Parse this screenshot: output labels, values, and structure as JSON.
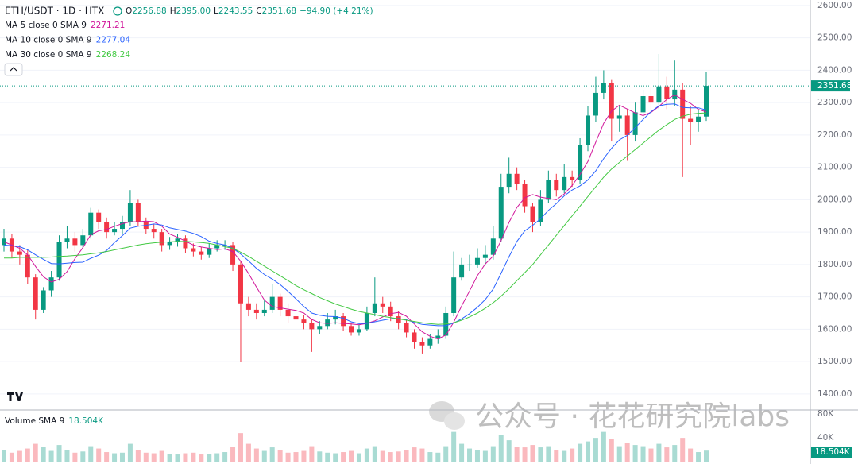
{
  "header": {
    "symbol": "ETH/USDT · 1D · HTX",
    "ohlc": [
      {
        "label": "O",
        "value": "2256.88"
      },
      {
        "label": "H",
        "value": "2395.00"
      },
      {
        "label": "L",
        "value": "2243.55"
      },
      {
        "label": "C",
        "value": "2351.68"
      }
    ],
    "change": "+94.90 (+4.21%)"
  },
  "watermark": "公众号 · 花花研究院labs",
  "chart_data": {
    "type": "candlestick",
    "up_color": "#089981",
    "down_color": "#f23645",
    "open": [
      1860,
      1880,
      1840,
      1830,
      1760,
      1660,
      1720,
      1760,
      1870,
      1880,
      1860,
      1890,
      1960,
      1930,
      1900,
      1910,
      1930,
      1990,
      1930,
      1910,
      1900,
      1860,
      1870,
      1880,
      1850,
      1840,
      1830,
      1850,
      1860,
      1860,
      1800,
      1680,
      1660,
      1650,
      1660,
      1700,
      1660,
      1640,
      1630,
      1620,
      1600,
      1610,
      1630,
      1640,
      1610,
      1590,
      1600,
      1650,
      1680,
      1670,
      1640,
      1620,
      1590,
      1560,
      1550,
      1570,
      1580,
      1650,
      1760,
      1800,
      1800,
      1820,
      1830,
      1880,
      2040,
      2080,
      2050,
      1980,
      1930,
      2000,
      2060,
      2030,
      2070,
      2060,
      2170,
      2260,
      2330,
      2360,
      2250,
      2260,
      2200,
      2270,
      2320,
      2300,
      2350,
      2310,
      2340,
      2250,
      2240,
      2256.88
    ],
    "high": [
      1910,
      1895,
      1860,
      1845,
      1770,
      1730,
      1780,
      1890,
      1920,
      1900,
      1910,
      1975,
      1970,
      1945,
      1930,
      1950,
      2030,
      2000,
      1945,
      1925,
      1910,
      1885,
      1895,
      1890,
      1865,
      1855,
      1865,
      1875,
      1875,
      1870,
      1810,
      1700,
      1680,
      1690,
      1740,
      1710,
      1680,
      1660,
      1645,
      1630,
      1625,
      1650,
      1660,
      1650,
      1620,
      1615,
      1670,
      1760,
      1700,
      1685,
      1655,
      1630,
      1600,
      1575,
      1585,
      1600,
      1670,
      1840,
      1820,
      1830,
      1850,
      1860,
      1920,
      2080,
      2130,
      2100,
      2060,
      1990,
      2030,
      2090,
      2080,
      2110,
      2090,
      2190,
      2290,
      2380,
      2400,
      2370,
      2290,
      2280,
      2300,
      2340,
      2350,
      2450,
      2380,
      2430,
      2360,
      2290,
      2280,
      2395
    ],
    "low": [
      1840,
      1820,
      1800,
      1740,
      1630,
      1650,
      1700,
      1750,
      1850,
      1840,
      1850,
      1880,
      1910,
      1880,
      1890,
      1895,
      1920,
      1920,
      1895,
      1880,
      1840,
      1845,
      1855,
      1835,
      1825,
      1815,
      1820,
      1840,
      1845,
      1780,
      1500,
      1640,
      1630,
      1640,
      1650,
      1640,
      1620,
      1615,
      1600,
      1530,
      1585,
      1600,
      1615,
      1595,
      1580,
      1580,
      1595,
      1640,
      1650,
      1625,
      1600,
      1575,
      1540,
      1525,
      1540,
      1555,
      1570,
      1640,
      1750,
      1780,
      1790,
      1800,
      1815,
      1870,
      2020,
      2030,
      1960,
      1900,
      1920,
      1990,
      2010,
      2020,
      2040,
      2050,
      2150,
      2240,
      2310,
      2180,
      2210,
      2120,
      2180,
      2240,
      2270,
      2280,
      2280,
      2290,
      2070,
      2170,
      2210,
      2243.55
    ],
    "close": [
      1880,
      1840,
      1830,
      1760,
      1660,
      1720,
      1760,
      1870,
      1880,
      1860,
      1890,
      1960,
      1930,
      1900,
      1910,
      1930,
      1990,
      1930,
      1910,
      1900,
      1860,
      1870,
      1880,
      1850,
      1840,
      1830,
      1850,
      1860,
      1860,
      1800,
      1680,
      1660,
      1650,
      1660,
      1700,
      1660,
      1640,
      1630,
      1620,
      1600,
      1610,
      1630,
      1640,
      1610,
      1590,
      1600,
      1650,
      1680,
      1670,
      1640,
      1620,
      1590,
      1560,
      1550,
      1570,
      1580,
      1650,
      1760,
      1800,
      1800,
      1820,
      1830,
      1880,
      2040,
      2080,
      2050,
      1980,
      1930,
      2000,
      2060,
      2030,
      2070,
      2060,
      2170,
      2260,
      2330,
      2360,
      2250,
      2260,
      2200,
      2270,
      2320,
      2300,
      2350,
      2310,
      2340,
      2250,
      2240,
      2256.88,
      2351.68
    ],
    "series": [
      {
        "name": "MA 5 close 0 SMA 9",
        "color": "#d1179b",
        "value_label": "2271.21",
        "values": [
          1870,
          1860,
          1850,
          1830,
          1794,
          1762,
          1746,
          1754,
          1778,
          1818,
          1852,
          1892,
          1904,
          1908,
          1918,
          1926,
          1932,
          1932,
          1934,
          1932,
          1918,
          1894,
          1884,
          1872,
          1860,
          1854,
          1850,
          1846,
          1848,
          1840,
          1810,
          1772,
          1730,
          1690,
          1670,
          1666,
          1662,
          1658,
          1650,
          1630,
          1620,
          1618,
          1620,
          1618,
          1616,
          1614,
          1618,
          1626,
          1638,
          1648,
          1652,
          1640,
          1616,
          1592,
          1578,
          1570,
          1582,
          1622,
          1672,
          1718,
          1766,
          1802,
          1826,
          1874,
          1930,
          1976,
          2006,
          2016,
          2008,
          2004,
          2000,
          2018,
          2044,
          2078,
          2118,
          2178,
          2236,
          2274,
          2292,
          2280,
          2268,
          2260,
          2270,
          2288,
          2310,
          2324,
          2310,
          2298,
          2279,
          2271.21
        ]
      },
      {
        "name": "MA 10 close 0 SMA 9",
        "color": "#2962ff",
        "value_label": "2277.04",
        "values": [
          1860,
          1858,
          1855,
          1845,
          1830,
          1816,
          1803,
          1802,
          1804,
          1806,
          1807,
          1819,
          1829,
          1843,
          1868,
          1889,
          1912,
          1918,
          1921,
          1925,
          1922,
          1913,
          1908,
          1903,
          1896,
          1886,
          1872,
          1865,
          1860,
          1850,
          1832,
          1811,
          1788,
          1769,
          1755,
          1738,
          1717,
          1694,
          1670,
          1650,
          1643,
          1640,
          1639,
          1634,
          1623,
          1617,
          1618,
          1623,
          1628,
          1632,
          1633,
          1629,
          1621,
          1615,
          1613,
          1611,
          1611,
          1619,
          1632,
          1648,
          1668,
          1692,
          1724,
          1773,
          1824,
          1871,
          1904,
          1921,
          1941,
          1967,
          1988,
          2012,
          2030,
          2043,
          2061,
          2089,
          2127,
          2159,
          2185,
          2199,
          2223,
          2248,
          2272,
          2290,
          2295,
          2296,
          2285,
          2284,
          2284,
          2277.04
        ]
      },
      {
        "name": "MA 30 close 0 SMA 9",
        "color": "#43c943",
        "value_label": "2268.24",
        "values": [
          1820,
          1820,
          1822,
          1822,
          1822,
          1822,
          1823,
          1825,
          1826,
          1828,
          1830,
          1833,
          1836,
          1840,
          1845,
          1850,
          1855,
          1860,
          1864,
          1867,
          1869,
          1870,
          1871,
          1871,
          1870,
          1868,
          1865,
          1860,
          1855,
          1850,
          1838,
          1825,
          1810,
          1795,
          1780,
          1765,
          1750,
          1735,
          1722,
          1710,
          1698,
          1688,
          1678,
          1670,
          1662,
          1655,
          1650,
          1645,
          1640,
          1636,
          1632,
          1628,
          1624,
          1620,
          1617,
          1615,
          1616,
          1620,
          1628,
          1638,
          1650,
          1665,
          1682,
          1702,
          1725,
          1750,
          1775,
          1800,
          1830,
          1860,
          1890,
          1920,
          1950,
          1980,
          2010,
          2040,
          2070,
          2095,
          2115,
          2135,
          2155,
          2175,
          2195,
          2215,
          2232,
          2248,
          2258,
          2264,
          2267,
          2268.24
        ]
      }
    ],
    "ylim": [
      1353,
      2617
    ],
    "yticks": [
      {
        "value": 2600,
        "label": "2600.00"
      },
      {
        "value": 2500,
        "label": "2500.00"
      },
      {
        "value": 2400,
        "label": "2400.00"
      },
      {
        "value": 2300,
        "label": "2300.00"
      },
      {
        "value": 2200,
        "label": "2200.00"
      },
      {
        "value": 2100,
        "label": "2100.00"
      },
      {
        "value": 2000,
        "label": "2000.00"
      },
      {
        "value": 1900,
        "label": "1900.00"
      },
      {
        "value": 1800,
        "label": "1800.00"
      },
      {
        "value": 1700,
        "label": "1700.00"
      },
      {
        "value": 1600,
        "label": "1600.00"
      },
      {
        "value": 1500,
        "label": "1500.00"
      },
      {
        "value": 1400,
        "label": "1400.00"
      }
    ],
    "grid": true,
    "volume": {
      "name": "Volume SMA 9",
      "value_label": "18.504K",
      "ylim": [
        0,
        87000
      ],
      "yticks": [
        {
          "value": 80000,
          "label": "80K"
        },
        {
          "value": 40000,
          "label": "40K"
        }
      ],
      "values": [
        20000,
        15000,
        18000,
        22000,
        30000,
        25000,
        18000,
        28000,
        20000,
        15000,
        17000,
        26000,
        22000,
        16000,
        14000,
        15000,
        30000,
        20000,
        15000,
        14000,
        18000,
        13000,
        12000,
        14000,
        15000,
        12000,
        13000,
        14000,
        16000,
        25000,
        48000,
        30000,
        22000,
        18000,
        24000,
        20000,
        15000,
        16000,
        18000,
        26000,
        17000,
        15000,
        14000,
        16000,
        18000,
        14000,
        22000,
        26000,
        18000,
        16000,
        17000,
        20000,
        24000,
        22000,
        16000,
        15000,
        26000,
        50000,
        30000,
        22000,
        20000,
        18000,
        26000,
        45000,
        36000,
        25000,
        24000,
        28000,
        24000,
        26000,
        20000,
        18000,
        22000,
        30000,
        34000,
        40000,
        50000,
        38000,
        26000,
        32000,
        28000,
        26000,
        22000,
        30000,
        24000,
        28000,
        40000,
        22000,
        16000,
        18504
      ]
    }
  }
}
